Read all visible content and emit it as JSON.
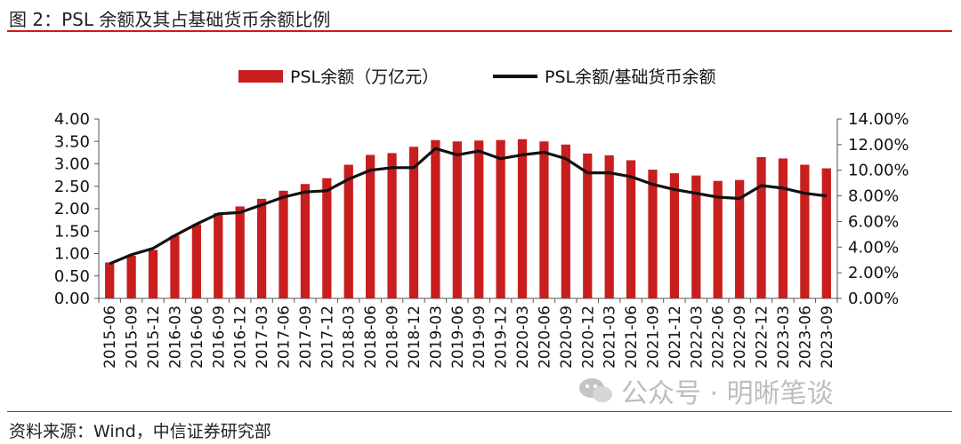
{
  "figure": {
    "title": "图 2：PSL 余额及其占基础货币余额比例",
    "source": "资料来源：Wind，中信证券研究部",
    "watermark": "公众号 · 明晰笔谈"
  },
  "colors": {
    "bar": "#c81e1e",
    "line": "#111111",
    "rule": "#c81e1e",
    "watermark": "#bdbdbd"
  },
  "icons": {
    "watermark": "wechat-icon"
  },
  "chart_data": {
    "type": "bar",
    "categories": [
      "2015-06",
      "2015-09",
      "2015-12",
      "2016-03",
      "2016-06",
      "2016-09",
      "2016-12",
      "2017-03",
      "2017-06",
      "2017-09",
      "2017-12",
      "2018-03",
      "2018-06",
      "2018-09",
      "2018-12",
      "2019-03",
      "2019-06",
      "2019-09",
      "2019-12",
      "2020-03",
      "2020-06",
      "2020-09",
      "2020-12",
      "2021-03",
      "2021-06",
      "2021-09",
      "2021-12",
      "2022-03",
      "2022-06",
      "2022-09",
      "2022-12",
      "2023-03",
      "2023-06",
      "2023-09"
    ],
    "series": [
      {
        "name": "PSL余额（万亿元）",
        "type": "bar",
        "axis": "left",
        "values": [
          0.8,
          0.95,
          1.08,
          1.4,
          1.65,
          1.9,
          2.05,
          2.22,
          2.4,
          2.55,
          2.68,
          2.98,
          3.2,
          3.24,
          3.38,
          3.53,
          3.5,
          3.52,
          3.53,
          3.55,
          3.5,
          3.43,
          3.23,
          3.19,
          3.08,
          2.87,
          2.79,
          2.74,
          2.62,
          2.64,
          3.15,
          3.12,
          2.98,
          2.9
        ]
      },
      {
        "name": "PSL余额/基础货币余额",
        "type": "line",
        "axis": "right",
        "values": [
          2.7,
          3.4,
          3.9,
          4.9,
          5.8,
          6.6,
          6.7,
          7.3,
          7.9,
          8.3,
          8.4,
          9.3,
          10.0,
          10.2,
          10.2,
          11.7,
          11.2,
          11.5,
          10.9,
          11.2,
          11.4,
          10.9,
          9.8,
          9.8,
          9.5,
          8.9,
          8.5,
          8.2,
          7.9,
          7.8,
          8.8,
          8.6,
          8.2,
          8.0
        ]
      }
    ],
    "y_left": {
      "ylim": [
        0,
        4
      ],
      "ticks": [
        "0.00",
        "0.50",
        "1.00",
        "1.50",
        "2.00",
        "2.50",
        "3.00",
        "3.50",
        "4.00"
      ]
    },
    "y_right": {
      "ylim": [
        0,
        14
      ],
      "ticks": [
        "0.00%",
        "2.00%",
        "4.00%",
        "6.00%",
        "8.00%",
        "10.00%",
        "12.00%",
        "14.00%"
      ]
    },
    "grid": false,
    "legend_position": "top-center"
  }
}
